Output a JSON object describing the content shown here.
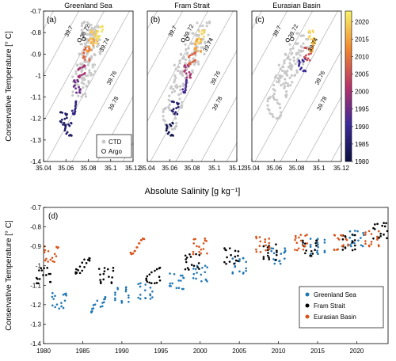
{
  "colors": {
    "greenland": "#1f77b4",
    "fram": "#000000",
    "eurasian": "#d95319",
    "ctd": "#c8c8c8",
    "isopycnal": "#b0b0b0"
  },
  "chart_data": [
    {
      "id": "a",
      "type": "scatter",
      "title": "Greenland Sea",
      "panel_label": "(a)",
      "xlim": [
        35.04,
        35.12
      ],
      "ylim": [
        -1.4,
        -0.7
      ],
      "xticks": [
        "35.04",
        "35.06",
        "35.08",
        "35.1",
        "35.12"
      ],
      "yticks": [
        "-0.7",
        "-0.8",
        "-0.9",
        "-1",
        "-1.1",
        "-1.2",
        "-1.3",
        "-1.4"
      ],
      "isopycnals": [
        "39.7",
        "39.72",
        "39.74",
        "39.76",
        "39.78"
      ],
      "ctd_cloud": [
        [
          35.08,
          -0.8
        ],
        [
          35.085,
          -0.85
        ],
        [
          35.08,
          -0.95
        ],
        [
          35.075,
          -1.0
        ],
        [
          35.072,
          -1.05
        ],
        [
          35.078,
          -0.9
        ],
        [
          35.083,
          -0.82
        ]
      ],
      "argo_points": [
        [
          35.072,
          -0.835
        ],
        [
          35.076,
          -0.83
        ]
      ],
      "colored_points": [
        [
          35.062,
          -1.25,
          1985
        ],
        [
          35.058,
          -1.2,
          1984
        ],
        [
          35.066,
          -1.15,
          1988
        ],
        [
          35.07,
          -1.05,
          1995
        ],
        [
          35.074,
          -0.98,
          2000
        ],
        [
          35.078,
          -0.9,
          2008
        ],
        [
          35.082,
          -0.86,
          2014
        ],
        [
          35.085,
          -0.82,
          2018
        ],
        [
          35.09,
          -0.8,
          2021
        ]
      ]
    },
    {
      "id": "b",
      "type": "scatter",
      "title": "Fram Strait",
      "panel_label": "(b)",
      "xlim": [
        35.04,
        35.12
      ],
      "ylim": [
        -1.4,
        -0.7
      ],
      "xticks": [
        "35.04",
        "35.06",
        "35.08",
        "35.1",
        "35.12"
      ],
      "isopycnals": [
        "39.7",
        "39.72",
        "39.74",
        "39.76",
        "39.78"
      ],
      "ctd_cloud": [
        [
          35.06,
          -1.2
        ],
        [
          35.065,
          -1.1
        ],
        [
          35.07,
          -1.0
        ],
        [
          35.075,
          -0.95
        ],
        [
          35.08,
          -0.9
        ],
        [
          35.085,
          -0.85
        ],
        [
          35.09,
          -0.8
        ]
      ],
      "argo_points": [
        [
          35.072,
          -0.835
        ],
        [
          35.076,
          -0.83
        ]
      ],
      "colored_points": [
        [
          35.06,
          -1.25,
          1982
        ],
        [
          35.065,
          -1.15,
          1985
        ],
        [
          35.072,
          -1.05,
          1992
        ],
        [
          35.076,
          -0.98,
          2000
        ],
        [
          35.08,
          -0.92,
          2008
        ],
        [
          35.085,
          -0.86,
          2015
        ],
        [
          35.088,
          -0.82,
          2020
        ]
      ]
    },
    {
      "id": "c",
      "type": "scatter",
      "title": "Eurasian Basin",
      "panel_label": "(c)",
      "xlim": [
        35.04,
        35.12
      ],
      "ylim": [
        -1.4,
        -0.7
      ],
      "xticks": [
        "35.04",
        "35.06",
        "35.08",
        "35.1",
        "35.12"
      ],
      "isopycnals": [
        "39.7",
        "39.72",
        "39.74",
        "39.76",
        "39.78"
      ],
      "ctd_cloud": [
        [
          35.06,
          -1.15
        ],
        [
          35.065,
          -1.05
        ],
        [
          35.07,
          -1.0
        ],
        [
          35.075,
          -0.95
        ],
        [
          35.08,
          -0.9
        ],
        [
          35.085,
          -0.85
        ]
      ],
      "argo_points": [
        [
          35.072,
          -0.835
        ],
        [
          35.076,
          -0.83
        ]
      ],
      "colored_points": [
        [
          35.085,
          -0.95,
          1990
        ],
        [
          35.09,
          -0.9,
          2005
        ],
        [
          35.092,
          -0.86,
          2015
        ],
        [
          35.094,
          -0.82,
          2020
        ]
      ]
    }
  ],
  "shared": {
    "xlabel": "Absolute Salinity [g kg⁻¹]",
    "ylabel": "Conservative Temperature [° C]",
    "legend_ctd": "CTD",
    "legend_argo": "Argo",
    "colorbar": {
      "ticks": [
        "2020",
        "2015",
        "2010",
        "2005",
        "2000",
        "1995",
        "1990",
        "1985",
        "1980"
      ],
      "range": [
        1980,
        2023
      ]
    }
  },
  "timeseries": {
    "type": "scatter",
    "panel_label": "(d)",
    "ylabel": "Conservative Temperature [° C]",
    "xlim": [
      1980,
      2024
    ],
    "ylim": [
      -1.4,
      -0.7
    ],
    "xticks": [
      "1980",
      "1985",
      "1990",
      "1995",
      "2000",
      "2005",
      "2010",
      "2015",
      "2020"
    ],
    "yticks": [
      "-0.7",
      "-0.8",
      "-0.9",
      "-1",
      "-1.1",
      "-1.2",
      "-1.3",
      "-1.4"
    ],
    "series": [
      {
        "name": "Greenland Sea",
        "color_key": "greenland",
        "points": [
          [
            1982,
            -1.18
          ],
          [
            1987,
            -1.2
          ],
          [
            1990,
            -1.15
          ],
          [
            1993,
            -1.13
          ],
          [
            1997,
            -1.08
          ],
          [
            2000,
            -1.04
          ],
          [
            2005,
            -1.0
          ],
          [
            2010,
            -0.95
          ],
          [
            2015,
            -0.9
          ],
          [
            2020,
            -0.86
          ]
        ]
      },
      {
        "name": "Fram Strait",
        "color_key": "fram",
        "points": [
          [
            1980,
            -1.05
          ],
          [
            1985,
            -1.0
          ],
          [
            1988,
            -1.05
          ],
          [
            1994,
            -1.05
          ],
          [
            1999,
            -0.98
          ],
          [
            2004,
            -0.95
          ],
          [
            2009,
            -0.93
          ],
          [
            2014,
            -0.91
          ],
          [
            2019,
            -0.88
          ],
          [
            2023,
            -0.82
          ]
        ]
      },
      {
        "name": "Eurasian Basin",
        "color_key": "eurasian",
        "points": [
          [
            1981,
            -0.94
          ],
          [
            1992,
            -0.9
          ],
          [
            2000,
            -0.9
          ],
          [
            2008,
            -0.89
          ],
          [
            2013,
            -0.88
          ],
          [
            2018,
            -0.88
          ],
          [
            2022,
            -0.86
          ]
        ]
      }
    ]
  }
}
